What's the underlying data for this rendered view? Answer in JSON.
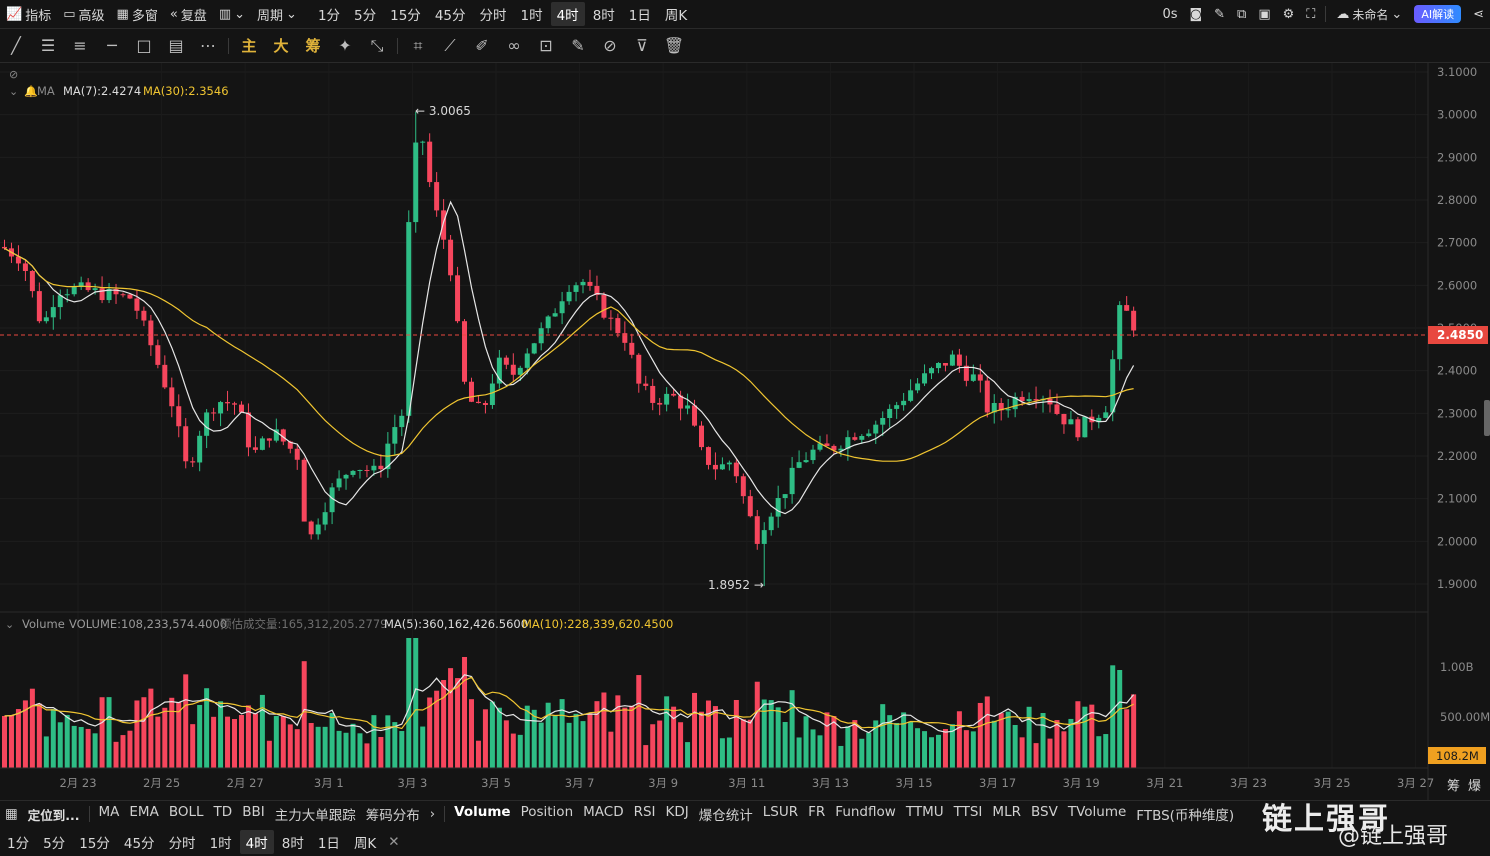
{
  "topbar": {
    "indicator": "指标",
    "advanced": "高级",
    "multi_window": "多窗",
    "replay": "复盘",
    "chart_type_icon": "candles-icon",
    "cycle": "周期",
    "periods": [
      "1分",
      "5分",
      "15分",
      "45分",
      "分时",
      "1时",
      "4时",
      "8时",
      "1日",
      "周K"
    ],
    "active_period": "4时",
    "countdown": "0s",
    "layout_name": "未命名",
    "ai_button": "AI解读"
  },
  "drawing_tools": {
    "gold_labels": [
      "主",
      "大",
      "筹"
    ]
  },
  "chart": {
    "ma_label": "MA",
    "ma7": "MA(7):2.4274",
    "ma30": "MA(30):2.3546",
    "high_label": "3.0065",
    "low_label": "1.8952",
    "current_price": "2.4850",
    "price_axis": [
      "3.1000",
      "3.0000",
      "2.9000",
      "2.8000",
      "2.7000",
      "2.6000",
      "2.5000",
      "2.4000",
      "2.3000",
      "2.2000",
      "2.1000",
      "2.0000",
      "1.9000"
    ],
    "volume_label": "Volume",
    "volume_value": "VOLUME:108,233,574.4000",
    "est_volume": "预估成交量:165,312,205.2779",
    "vol_ma5": "MA(5):360,162,426.5600",
    "vol_ma10": "MA(10):228,339,620.4500",
    "volume_axis": [
      "1.00B",
      "500.00M"
    ],
    "current_volume": "108.2M",
    "date_axis": [
      "2月 23",
      "2月 25",
      "2月 27",
      "3月 1",
      "3月 3",
      "3月 5",
      "3月 7",
      "3月 9",
      "3月 11",
      "3月 13",
      "3月 15",
      "3月 17",
      "3月 19",
      "3月 21",
      "3月 23",
      "3月 25",
      "3月 27"
    ],
    "side_labels": [
      "筹",
      "爆"
    ],
    "colors": {
      "up": "#2ebd85",
      "down": "#f6465d",
      "ma7": "#e6e6e6",
      "ma30": "#f0c531",
      "price_tag": "#e8483f",
      "volume_tag": "#f0a020"
    }
  },
  "bottom": {
    "locate": "定位到...",
    "indicators": [
      "MA",
      "EMA",
      "BOLL",
      "TD",
      "BBI",
      "主力大单跟踪",
      "筹码分布"
    ],
    "sub_indicators": [
      "Volume",
      "Position",
      "MACD",
      "RSI",
      "KDJ",
      "爆仓统计",
      "LSUR",
      "FR",
      "Fundflow",
      "TTMU",
      "TTSI",
      "MLR",
      "BSV",
      "TVolume",
      "FTBS(币种维度)"
    ],
    "periods": [
      "1分",
      "5分",
      "15分",
      "45分",
      "分时",
      "1时",
      "4时",
      "8时",
      "1日",
      "周K"
    ],
    "active_period": "4时"
  },
  "watermark": {
    "line1": "链上强哥",
    "line2": "@链上强哥"
  }
}
